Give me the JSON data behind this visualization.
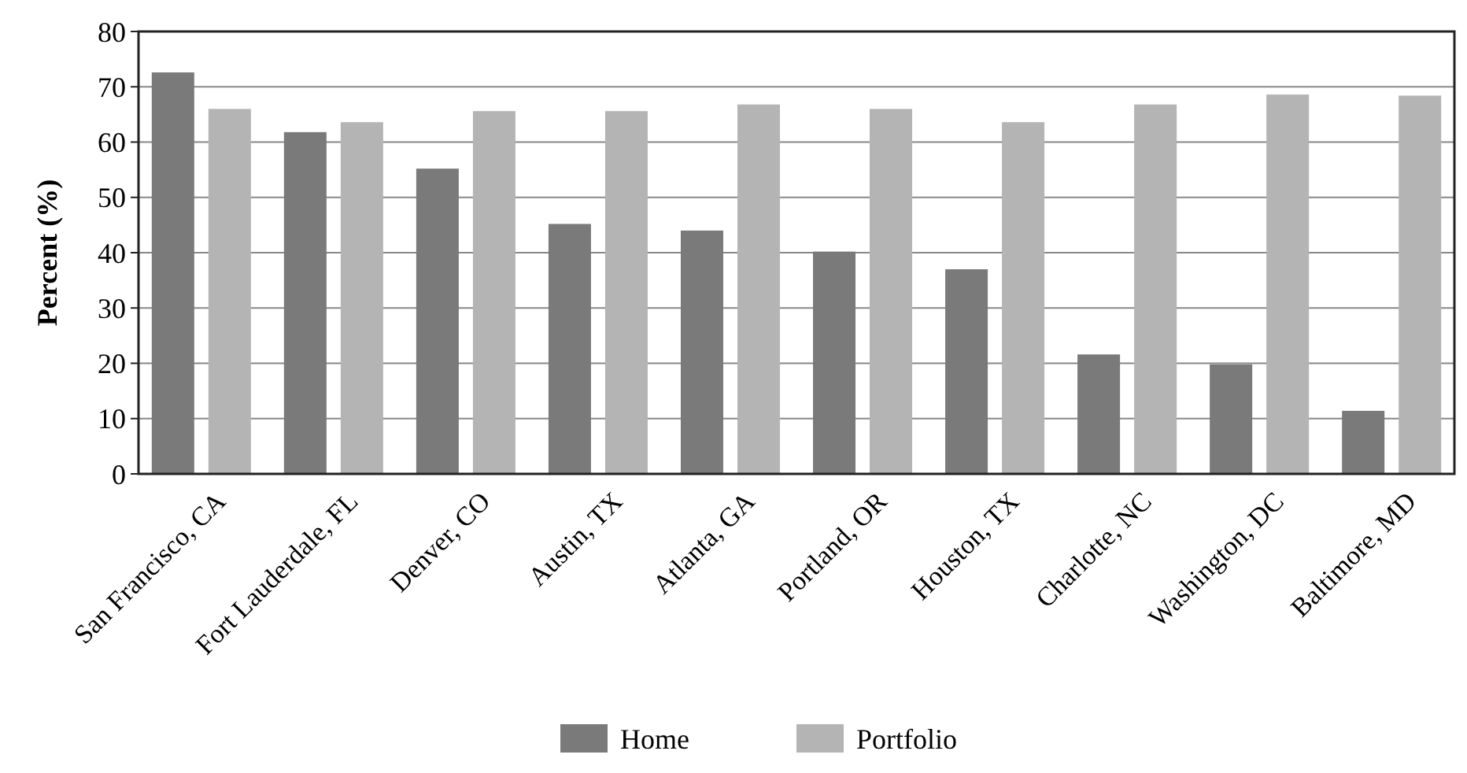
{
  "chart_data": {
    "type": "bar",
    "ylabel": "Percent (%)",
    "categories": [
      "San Francisco, CA",
      "Fort Lauderdale, FL",
      "Denver, CO",
      "Austin, TX",
      "Atlanta, GA",
      "Portland, OR",
      "Houston, TX",
      "Charlotte, NC",
      "Washington, DC",
      "Baltimore, MD"
    ],
    "series": [
      {
        "name": "Home",
        "color": "#7a7a7a",
        "values": [
          72.6,
          61.8,
          55.2,
          45.2,
          44,
          40.2,
          37,
          21.6,
          19.8,
          11.4
        ]
      },
      {
        "name": "Portfolio",
        "color": "#b4b4b4",
        "values": [
          66,
          63.6,
          65.6,
          65.6,
          66.8,
          66,
          63.6,
          66.8,
          68.6,
          68.4
        ]
      }
    ],
    "ylim": [
      0,
      80
    ],
    "yticks": [
      0,
      10,
      20,
      30,
      40,
      50,
      60,
      70,
      80
    ],
    "grid": "y",
    "legend": "bottom"
  }
}
